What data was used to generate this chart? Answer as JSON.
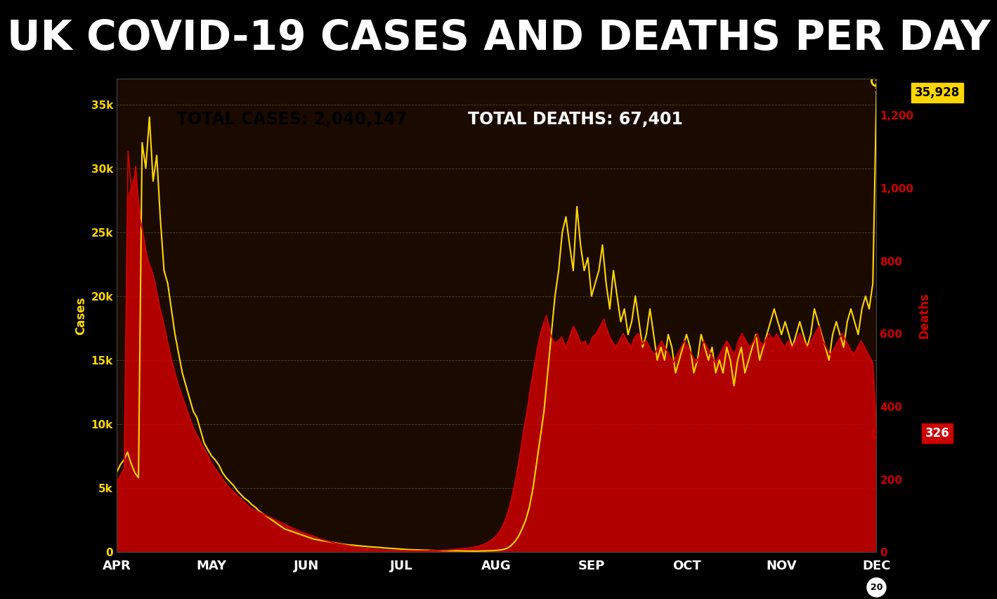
{
  "title": "UK COVID-19 CASES AND DEATHS PER DAY",
  "background_color": "#000000",
  "plot_bg_color": "#1a0a00",
  "total_cases_label": "TOTAL CASES: 2,040,147",
  "total_deaths_label": "TOTAL DEATHS: 67,401",
  "cases_box_color": "#FFD700",
  "deaths_box_color": "#CC0000",
  "cases_line_color": "#FFD700",
  "deaths_line_color": "#CC0000",
  "left_ylabel": "Cases",
  "right_ylabel": "Deaths",
  "ylim_cases": [
    0,
    37000
  ],
  "ylim_deaths": [
    0,
    1300
  ],
  "last_cases_value": "35,928",
  "last_deaths_value": "326",
  "cases_yticks": [
    0,
    5000,
    10000,
    15000,
    20000,
    25000,
    30000,
    35000
  ],
  "cases_ytick_labels": [
    "0",
    "5k",
    "10k",
    "15k",
    "20k",
    "25k",
    "30k",
    "35k"
  ],
  "deaths_yticks": [
    0,
    200,
    400,
    600,
    800,
    1000,
    1200
  ],
  "deaths_ytick_labels": [
    "0",
    "200",
    "400",
    "600",
    "800",
    "1,000",
    "1,200"
  ],
  "month_labels": [
    "APR",
    "MAY",
    "JUN",
    "JUL",
    "AUG",
    "SEP",
    "OCT",
    "NOV",
    "DEC"
  ],
  "month_positions": [
    0.0,
    0.125,
    0.25,
    0.375,
    0.5,
    0.625,
    0.75,
    0.875,
    1.0
  ],
  "cases_data": [
    6200,
    6800,
    7200,
    7800,
    6900,
    6200,
    5800,
    32000,
    30000,
    34000,
    29000,
    31000,
    26000,
    22000,
    21000,
    19000,
    17000,
    15500,
    14000,
    13000,
    12000,
    11000,
    10500,
    9500,
    8500,
    8000,
    7500,
    7200,
    6800,
    6200,
    5800,
    5500,
    5200,
    4800,
    4500,
    4200,
    4000,
    3700,
    3500,
    3200,
    3000,
    2800,
    2600,
    2400,
    2200,
    2000,
    1800,
    1700,
    1600,
    1500,
    1400,
    1300,
    1200,
    1100,
    1000,
    950,
    900,
    850,
    800,
    750,
    700,
    650,
    600,
    570,
    540,
    520,
    490,
    460,
    440,
    410,
    390,
    370,
    350,
    320,
    300,
    280,
    260,
    240,
    220,
    200,
    180,
    170,
    160,
    150,
    140,
    130,
    120,
    110,
    105,
    100,
    95,
    90,
    85,
    80,
    75,
    70,
    65,
    60,
    60,
    65,
    70,
    80,
    90,
    100,
    120,
    150,
    200,
    300,
    500,
    800,
    1200,
    1800,
    2500,
    3500,
    5000,
    7000,
    9000,
    11000,
    14000,
    17000,
    20000,
    22000,
    25000,
    26200,
    24000,
    22000,
    27000,
    24000,
    22000,
    23000,
    20000,
    21000,
    22000,
    24000,
    21000,
    19000,
    22000,
    20000,
    18000,
    19000,
    17000,
    18000,
    20000,
    18000,
    16000,
    17000,
    19000,
    17000,
    15000,
    16000,
    15000,
    17000,
    16000,
    14000,
    15000,
    16000,
    17000,
    16000,
    14000,
    15000,
    17000,
    16000,
    15000,
    16000,
    14000,
    15000,
    14000,
    16000,
    15000,
    13000,
    15000,
    16000,
    14000,
    15000,
    16000,
    17000,
    15000,
    16000,
    17000,
    18000,
    19000,
    18000,
    17000,
    18000,
    17000,
    16000,
    17000,
    18000,
    17000,
    16000,
    17000,
    19000,
    18000,
    17000,
    16000,
    15000,
    17000,
    18000,
    17000,
    16000,
    18000,
    19000,
    18000,
    17000,
    19000,
    20000,
    19000,
    21000,
    35928
  ],
  "deaths_data": [
    190,
    210,
    230,
    1100,
    980,
    1060,
    920,
    870,
    800,
    780,
    740,
    680,
    640,
    590,
    540,
    500,
    460,
    430,
    400,
    370,
    340,
    320,
    300,
    280,
    260,
    240,
    225,
    210,
    195,
    180,
    170,
    160,
    150,
    140,
    130,
    120,
    115,
    110,
    105,
    100,
    95,
    90,
    85,
    80,
    75,
    70,
    65,
    60,
    56,
    52,
    48,
    44,
    40,
    36,
    33,
    30,
    27,
    24,
    22,
    20,
    18,
    16,
    14,
    12,
    11,
    10,
    9,
    8,
    7,
    6,
    5,
    5,
    4,
    4,
    4,
    3,
    3,
    3,
    3,
    3,
    3,
    3,
    4,
    4,
    4,
    5,
    5,
    6,
    7,
    8,
    9,
    10,
    11,
    13,
    15,
    18,
    22,
    28,
    35,
    45,
    60,
    80,
    110,
    150,
    200,
    260,
    330,
    390,
    460,
    520,
    580,
    620,
    650,
    600,
    570,
    580,
    590,
    560,
    590,
    620,
    600,
    570,
    580,
    560,
    590,
    600,
    620,
    640,
    600,
    580,
    560,
    580,
    600,
    580,
    560,
    590,
    600,
    570,
    580,
    560,
    540,
    560,
    580,
    560,
    540,
    520,
    540,
    560,
    580,
    560,
    540,
    520,
    540,
    580,
    560,
    540,
    520,
    540,
    560,
    580,
    560,
    540,
    580,
    600,
    580,
    560,
    580,
    600,
    560,
    580,
    600,
    580,
    600,
    580,
    560,
    580,
    560,
    580,
    600,
    580,
    560,
    580,
    600,
    620,
    580,
    560,
    540,
    560,
    580,
    600,
    580,
    560,
    540,
    560,
    580,
    560,
    540,
    520,
    326
  ]
}
